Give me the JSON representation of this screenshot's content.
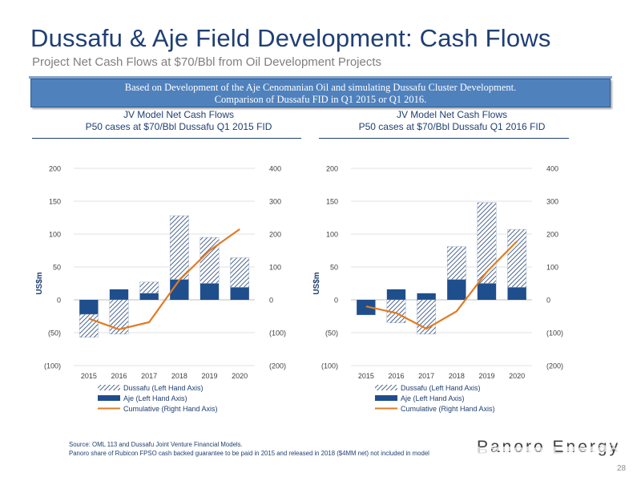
{
  "header": {
    "title": "Dussafu & Aje Field Development: Cash Flows",
    "subtitle": "Project Net Cash Flows at $70/Bbl from Oil Development Projects"
  },
  "banner": {
    "line1": "Based on Development of the Aje Cenomanian Oil and simulating Dussafu Cluster Development.",
    "line2": "Comparison of Dussafu FID in Q1 2015 or Q1 2016."
  },
  "colors": {
    "navy": "#1f3f73",
    "aje": "#1f4e8c",
    "cumulative": "#e07b24",
    "banner": "#4f81bd"
  },
  "chart_data": [
    {
      "type": "bar",
      "heading_line1": "JV Model Net Cash Flows",
      "heading_line2": "P50 cases at $70/Bbl Dussafu Q1 2015 FID",
      "ylabel": "US$m",
      "categories": [
        "2015",
        "2016",
        "2017",
        "2018",
        "2019",
        "2020"
      ],
      "ylim": [
        -100,
        200
      ],
      "yticks": [
        -100,
        -50,
        0,
        50,
        100,
        150,
        200
      ],
      "ytick_labels": [
        "(100)",
        "(50)",
        "0",
        "50",
        "100",
        "150",
        "200"
      ],
      "y2lim": [
        -200,
        400
      ],
      "y2ticks": [
        -200,
        -100,
        0,
        100,
        200,
        300,
        400
      ],
      "y2tick_labels": [
        "(200)",
        "(100)",
        "0",
        "100",
        "200",
        "300",
        "400"
      ],
      "grid": true,
      "series": [
        {
          "name": "Dussafu (Left Hand Axis)",
          "kind": "bar-hatched",
          "axis": "left",
          "values": [
            -35,
            -52,
            17,
            97,
            70,
            45
          ]
        },
        {
          "name": "Aje (Left Hand Axis)",
          "kind": "bar-solid",
          "axis": "left",
          "values": [
            -22,
            16,
            10,
            31,
            25,
            19
          ]
        },
        {
          "name": "Cumulative (Right Hand Axis)",
          "kind": "line",
          "axis": "right",
          "values": [
            -57,
            -90,
            -68,
            60,
            150,
            215
          ]
        }
      ],
      "legend_position": "bottom"
    },
    {
      "type": "bar",
      "heading_line1": "JV Model Net Cash Flows",
      "heading_line2": "P50 cases at $70/Bbl Dussafu Q1 2016 FID",
      "ylabel": "US$m",
      "categories": [
        "2015",
        "2016",
        "2017",
        "2018",
        "2019",
        "2020"
      ],
      "ylim": [
        -100,
        200
      ],
      "yticks": [
        -100,
        -50,
        0,
        50,
        100,
        150,
        200
      ],
      "ytick_labels": [
        "(100)",
        "(50)",
        "0",
        "50",
        "100",
        "150",
        "200"
      ],
      "y2lim": [
        -200,
        400
      ],
      "y2ticks": [
        -200,
        -100,
        0,
        100,
        200,
        300,
        400
      ],
      "y2tick_labels": [
        "(200)",
        "(100)",
        "0",
        "100",
        "200",
        "300",
        "400"
      ],
      "grid": true,
      "series": [
        {
          "name": "Dussafu (Left Hand Axis)",
          "kind": "bar-hatched",
          "axis": "left",
          "values": [
            0,
            -35,
            -52,
            50,
            123,
            88
          ]
        },
        {
          "name": "Aje (Left Hand Axis)",
          "kind": "bar-solid",
          "axis": "left",
          "values": [
            -23,
            16,
            10,
            31,
            25,
            19
          ]
        },
        {
          "name": "Cumulative (Right Hand Axis)",
          "kind": "line",
          "axis": "right",
          "values": [
            -20,
            -40,
            -88,
            -35,
            85,
            178
          ]
        }
      ],
      "legend_position": "bottom"
    }
  ],
  "footer": {
    "source_line1": "Source: OML 113 and Dussafu Joint Venture Financial Models.",
    "source_line2": "Panoro share of Rubicon FPSO cash backed guarantee to be paid in 2015 and released in 2018 ($4MM net) not included in model",
    "logo": "Panoro Energy",
    "page_number": "28"
  }
}
